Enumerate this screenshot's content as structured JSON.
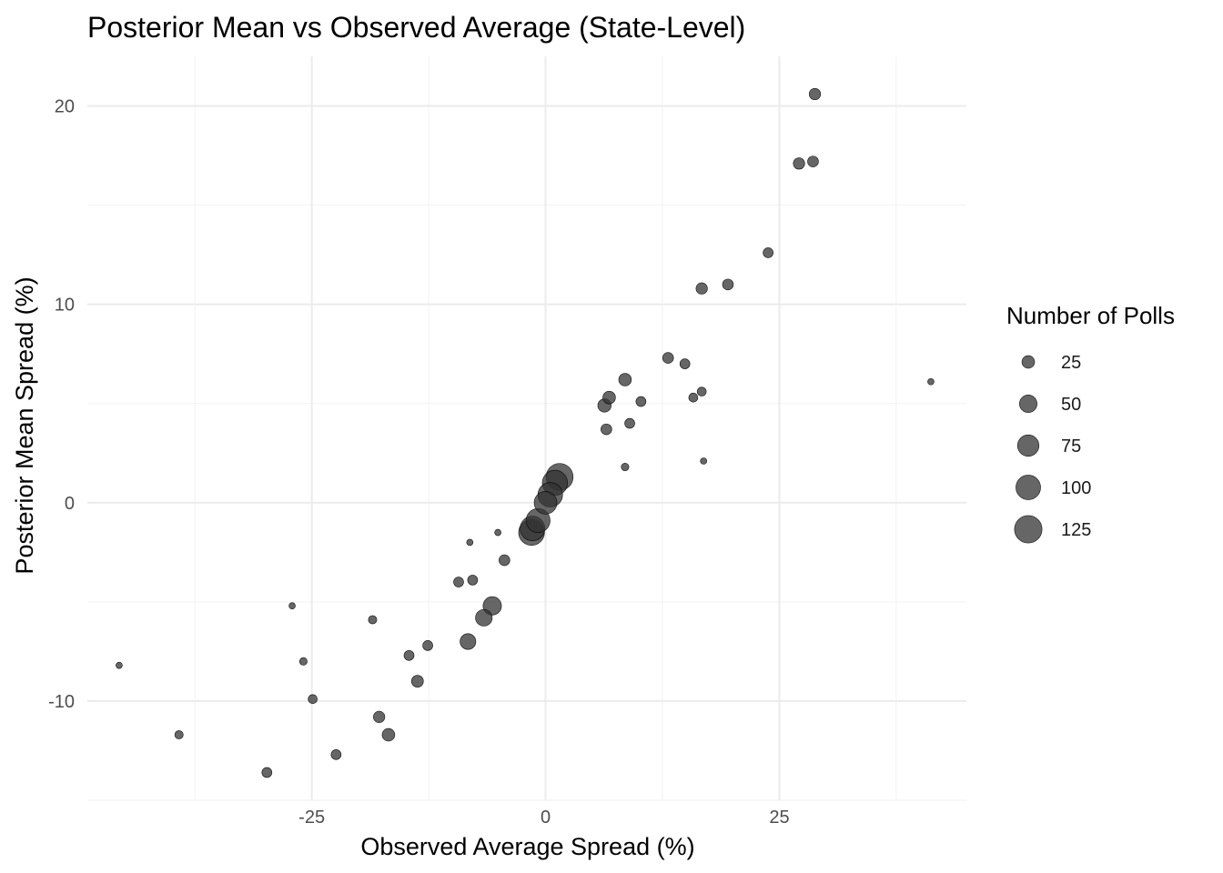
{
  "chart_data": {
    "type": "scatter",
    "title": "Posterior Mean vs Observed Average (State-Level)",
    "xlabel": "Observed Average Spread (%)",
    "ylabel": "Posterior Mean Spread (%)",
    "xlim": [
      -49,
      45
    ],
    "ylim": [
      -15,
      22.5
    ],
    "x_ticks": [
      -25,
      0,
      25
    ],
    "x_tick_labels": [
      "-25",
      "0",
      "25"
    ],
    "y_ticks": [
      -10,
      0,
      10,
      20
    ],
    "y_tick_labels": [
      "-10",
      "0",
      "10",
      "20"
    ],
    "grid": true,
    "legend": {
      "title": "Number of Polls",
      "placement": "right",
      "entries": [
        {
          "label": "25",
          "value": 25
        },
        {
          "label": "50",
          "value": 50
        },
        {
          "label": "75",
          "value": 75
        },
        {
          "label": "100",
          "value": 100
        },
        {
          "label": "125",
          "value": 125
        }
      ]
    },
    "size_range": [
      5,
      140
    ],
    "point_color": "#333333",
    "point_opacity": 0.75,
    "points": [
      {
        "x": 28.8,
        "y": 20.6,
        "n": 20
      },
      {
        "x": 27.1,
        "y": 17.1,
        "n": 20
      },
      {
        "x": 28.6,
        "y": 17.2,
        "n": 18
      },
      {
        "x": 23.8,
        "y": 12.6,
        "n": 15
      },
      {
        "x": 16.7,
        "y": 10.8,
        "n": 20
      },
      {
        "x": 19.5,
        "y": 11.0,
        "n": 18
      },
      {
        "x": 13.1,
        "y": 7.3,
        "n": 18
      },
      {
        "x": 14.9,
        "y": 7.0,
        "n": 15
      },
      {
        "x": 8.5,
        "y": 6.2,
        "n": 25
      },
      {
        "x": 6.8,
        "y": 5.3,
        "n": 25
      },
      {
        "x": 6.3,
        "y": 4.9,
        "n": 28
      },
      {
        "x": 10.2,
        "y": 5.1,
        "n": 15
      },
      {
        "x": 16.7,
        "y": 5.6,
        "n": 12
      },
      {
        "x": 15.8,
        "y": 5.3,
        "n": 12
      },
      {
        "x": 6.5,
        "y": 3.7,
        "n": 18
      },
      {
        "x": 9.0,
        "y": 4.0,
        "n": 15
      },
      {
        "x": 8.5,
        "y": 1.8,
        "n": 8
      },
      {
        "x": 16.9,
        "y": 2.1,
        "n": 5
      },
      {
        "x": 41.2,
        "y": 6.1,
        "n": 5
      },
      {
        "x": 1.5,
        "y": 1.3,
        "n": 120
      },
      {
        "x": 1.0,
        "y": 1.0,
        "n": 105
      },
      {
        "x": 0.5,
        "y": 0.4,
        "n": 100
      },
      {
        "x": 0.0,
        "y": 0.0,
        "n": 85
      },
      {
        "x": -0.8,
        "y": -0.9,
        "n": 95
      },
      {
        "x": -1.4,
        "y": -1.3,
        "n": 100
      },
      {
        "x": -1.5,
        "y": -1.5,
        "n": 110
      },
      {
        "x": -5.1,
        "y": -1.5,
        "n": 5
      },
      {
        "x": -8.1,
        "y": -2.0,
        "n": 5
      },
      {
        "x": -4.4,
        "y": -2.9,
        "n": 18
      },
      {
        "x": -9.3,
        "y": -4.0,
        "n": 15
      },
      {
        "x": -7.8,
        "y": -3.9,
        "n": 15
      },
      {
        "x": -5.7,
        "y": -5.2,
        "n": 55
      },
      {
        "x": -6.6,
        "y": -5.8,
        "n": 45
      },
      {
        "x": -8.3,
        "y": -7.0,
        "n": 40
      },
      {
        "x": -27.1,
        "y": -5.2,
        "n": 5
      },
      {
        "x": -18.5,
        "y": -5.9,
        "n": 10
      },
      {
        "x": -12.6,
        "y": -7.2,
        "n": 15
      },
      {
        "x": -14.6,
        "y": -7.7,
        "n": 15
      },
      {
        "x": -25.9,
        "y": -8.0,
        "n": 8
      },
      {
        "x": -45.6,
        "y": -8.2,
        "n": 5
      },
      {
        "x": -13.7,
        "y": -9.0,
        "n": 22
      },
      {
        "x": -24.9,
        "y": -9.9,
        "n": 12
      },
      {
        "x": -17.8,
        "y": -10.8,
        "n": 20
      },
      {
        "x": -16.8,
        "y": -11.7,
        "n": 25
      },
      {
        "x": -39.2,
        "y": -11.7,
        "n": 10
      },
      {
        "x": -22.4,
        "y": -12.7,
        "n": 15
      },
      {
        "x": -29.8,
        "y": -13.6,
        "n": 15
      }
    ]
  }
}
